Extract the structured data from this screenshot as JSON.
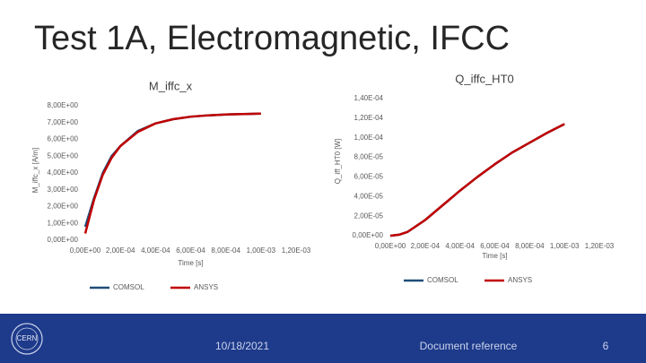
{
  "title": "Test 1A, Electromagnetic, IFCC",
  "chart_data": [
    {
      "type": "line",
      "title": "M_iffc_x",
      "y_label": "M_iffc_x [A/m]",
      "x_label": "Time [s]",
      "x": [
        0,
        5e-05,
        0.0001,
        0.00015,
        0.0002,
        0.0003,
        0.0004,
        0.0005,
        0.0006,
        0.0007,
        0.0008,
        0.0009,
        0.001
      ],
      "series": [
        {
          "name": "COMSOL",
          "color": "#1f4e79",
          "values": [
            0.8,
            2.5,
            4.0,
            5.0,
            5.6,
            6.5,
            6.95,
            7.2,
            7.35,
            7.43,
            7.48,
            7.51,
            7.53
          ]
        },
        {
          "name": "ANSYS",
          "color": "#c00000",
          "values": [
            0.4,
            2.4,
            3.9,
            4.9,
            5.6,
            6.45,
            6.95,
            7.2,
            7.35,
            7.43,
            7.48,
            7.51,
            7.53
          ]
        }
      ],
      "xlim": [
        0,
        0.0012
      ],
      "xticks": [
        {
          "value": 0,
          "label": "0,00E+00"
        },
        {
          "value": 0.0002,
          "label": "2,00E-04"
        },
        {
          "value": 0.0004,
          "label": "4,00E-04"
        },
        {
          "value": 0.0006,
          "label": "6,00E-04"
        },
        {
          "value": 0.0008,
          "label": "8,00E-04"
        },
        {
          "value": 0.001,
          "label": "1,00E-03"
        },
        {
          "value": 0.0012,
          "label": "1,20E-03"
        }
      ],
      "ylim": [
        0,
        8
      ],
      "yticks": [
        {
          "value": 0,
          "label": "0,00E+00"
        },
        {
          "value": 1,
          "label": "1,00E+00"
        },
        {
          "value": 2,
          "label": "2,00E+00"
        },
        {
          "value": 3,
          "label": "3,00E+00"
        },
        {
          "value": 4,
          "label": "4,00E+00"
        },
        {
          "value": 5,
          "label": "5,00E+00"
        },
        {
          "value": 6,
          "label": "6,00E+00"
        },
        {
          "value": 7,
          "label": "7,00E+00"
        },
        {
          "value": 8,
          "label": "8,00E+00"
        }
      ],
      "grid": false,
      "legend": "bottom"
    },
    {
      "type": "line",
      "title": "Q_iffc_HT0",
      "y_label": "Q_iff_HT0 [W]",
      "x_label": "Time [s]",
      "x": [
        0,
        5e-05,
        0.0001,
        0.0002,
        0.0003,
        0.0004,
        0.0005,
        0.0006,
        0.0007,
        0.0008,
        0.0009,
        0.001
      ],
      "series": [
        {
          "name": "COMSOL",
          "color": "#1f4e79",
          "values": [
            0,
            1e-06,
            4e-06,
            1.6e-05,
            3.1e-05,
            4.6e-05,
            6e-05,
            7.3e-05,
            8.5e-05,
            9.5e-05,
            0.000105,
            0.000114
          ]
        },
        {
          "name": "ANSYS",
          "color": "#c00000",
          "values": [
            0,
            1e-06,
            4e-06,
            1.6e-05,
            3.1e-05,
            4.6e-05,
            6e-05,
            7.3e-05,
            8.5e-05,
            9.5e-05,
            0.000105,
            0.000114
          ]
        }
      ],
      "xlim": [
        0,
        0.0012
      ],
      "xticks": [
        {
          "value": 0,
          "label": "0,00E+00"
        },
        {
          "value": 0.0002,
          "label": "2,00E-04"
        },
        {
          "value": 0.0004,
          "label": "4,00E-04"
        },
        {
          "value": 0.0006,
          "label": "6,00E-04"
        },
        {
          "value": 0.0008,
          "label": "8,00E-04"
        },
        {
          "value": 0.001,
          "label": "1,00E-03"
        },
        {
          "value": 0.0012,
          "label": "1,20E-03"
        }
      ],
      "ylim": [
        0,
        0.00014
      ],
      "yticks": [
        {
          "value": 0,
          "label": "0,00E+00"
        },
        {
          "value": 2e-05,
          "label": "2,00E-05"
        },
        {
          "value": 4e-05,
          "label": "4,00E-05"
        },
        {
          "value": 6e-05,
          "label": "6,00E-05"
        },
        {
          "value": 8e-05,
          "label": "8,00E-05"
        },
        {
          "value": 0.0001,
          "label": "1,00E-04"
        },
        {
          "value": 0.00012,
          "label": "1,20E-04"
        },
        {
          "value": 0.00014,
          "label": "1,40E-04"
        }
      ],
      "grid": false,
      "legend": "bottom"
    }
  ],
  "footer": {
    "logo_text": "CERN",
    "date": "10/18/2021",
    "reference": "Document reference",
    "page": "6"
  }
}
